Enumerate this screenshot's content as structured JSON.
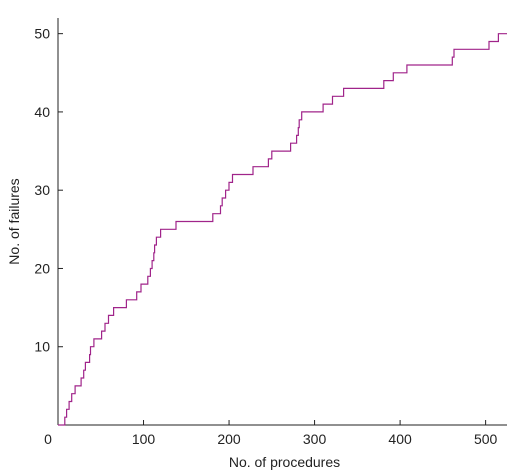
{
  "chart_data": {
    "type": "line",
    "step": true,
    "title": "",
    "xlabel": "No. of procedures",
    "ylabel": "No. of failures",
    "xlim": [
      0,
      525
    ],
    "ylim": [
      0,
      52
    ],
    "x_ticks": [
      100,
      200,
      300,
      400,
      500
    ],
    "y_ticks": [
      10,
      20,
      30,
      40,
      50
    ],
    "origin_label": "0",
    "grid": false,
    "legend": "none",
    "line_color": "#a0248a",
    "series": [
      {
        "x": [
          0,
          5,
          8,
          10,
          13,
          16,
          20,
          22,
          27,
          30,
          32,
          35,
          37,
          38,
          42,
          46,
          51,
          55,
          59,
          65,
          80,
          86,
          92,
          97,
          101,
          105,
          108,
          110,
          112,
          113,
          115,
          118,
          120,
          121,
          124,
          128,
          138,
          181,
          186,
          190,
          192,
          196,
          200,
          204,
          210,
          228,
          246,
          250,
          265,
          272,
          279,
          281,
          282,
          285,
          290,
          307,
          310,
          320,
          321,
          330,
          334,
          381,
          385,
          392,
          400,
          408,
          455,
          461,
          462,
          463,
          485,
          504,
          515,
          525
        ],
        "y": [
          0,
          0,
          1,
          2,
          3,
          4,
          5,
          5,
          6,
          7,
          8,
          8,
          9,
          10,
          11,
          11,
          12,
          13,
          14,
          15,
          16,
          16,
          17,
          18,
          18,
          19,
          20,
          21,
          22,
          23,
          24,
          24,
          25,
          25,
          25,
          25,
          26,
          27,
          27,
          28,
          29,
          30,
          31,
          32,
          32,
          33,
          34,
          35,
          35,
          36,
          37,
          38,
          39,
          40,
          40,
          40,
          41,
          41,
          42,
          42,
          43,
          44,
          44,
          45,
          45,
          46,
          46,
          47,
          47,
          48,
          48,
          49,
          50,
          50
        ]
      }
    ]
  }
}
